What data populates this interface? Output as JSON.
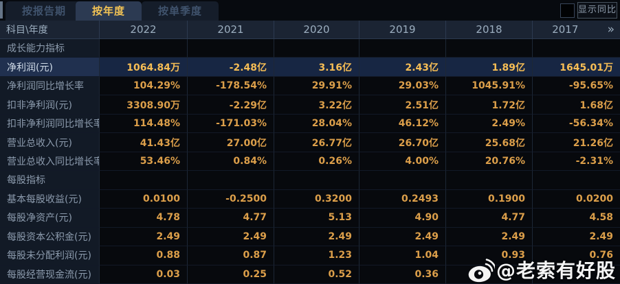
{
  "tabs": [
    {
      "label": "按报告期",
      "active": false
    },
    {
      "label": "按年度",
      "active": true
    },
    {
      "label": "按单季度",
      "active": false
    }
  ],
  "controls": {
    "show_yoy_label": "显示同比",
    "checkbox_checked": false
  },
  "table": {
    "corner_label": "科目\\年度",
    "years": [
      "2022",
      "2021",
      "2020",
      "2019",
      "2018",
      "2017"
    ],
    "more_icon": "»",
    "rows": [
      {
        "type": "section",
        "label": "成长能力指标",
        "values": [
          "",
          "",
          "",
          "",
          "",
          ""
        ]
      },
      {
        "type": "data",
        "label": "净利润(元)",
        "highlight": true,
        "values": [
          "1064.84万",
          "-2.48亿",
          "3.16亿",
          "2.43亿",
          "1.89亿",
          "1645.01万"
        ]
      },
      {
        "type": "data",
        "label": "净利润同比增长率",
        "values": [
          "104.29%",
          "-178.54%",
          "29.91%",
          "29.03%",
          "1045.91%",
          "-95.65%"
        ]
      },
      {
        "type": "data",
        "label": "扣非净利润(元)",
        "values": [
          "3308.90万",
          "-2.29亿",
          "3.22亿",
          "2.51亿",
          "1.72亿",
          "1.68亿"
        ]
      },
      {
        "type": "data",
        "label": "扣非净利润同比增长率",
        "values": [
          "114.48%",
          "-171.03%",
          "28.04%",
          "46.12%",
          "2.49%",
          "-56.34%"
        ]
      },
      {
        "type": "data",
        "label": "营业总收入(元)",
        "values": [
          "41.43亿",
          "27.00亿",
          "26.77亿",
          "26.70亿",
          "25.68亿",
          "21.26亿"
        ]
      },
      {
        "type": "data",
        "label": "营业总收入同比增长率",
        "values": [
          "53.46%",
          "0.84%",
          "0.26%",
          "4.00%",
          "20.76%",
          "-2.31%"
        ]
      },
      {
        "type": "section",
        "label": "每股指标",
        "values": [
          "",
          "",
          "",
          "",
          "",
          ""
        ]
      },
      {
        "type": "data",
        "label": "基本每股收益(元)",
        "values": [
          "0.0100",
          "-0.2500",
          "0.3200",
          "0.2493",
          "0.1900",
          "0.0200"
        ]
      },
      {
        "type": "data",
        "label": "每股净资产(元)",
        "values": [
          "4.78",
          "4.77",
          "5.13",
          "4.90",
          "4.77",
          "4.58"
        ]
      },
      {
        "type": "data",
        "label": "每股资本公积金(元)",
        "values": [
          "2.49",
          "2.49",
          "2.49",
          "2.49",
          "2.49",
          "2.49"
        ]
      },
      {
        "type": "data",
        "label": "每股未分配利润(元)",
        "values": [
          "0.88",
          "0.87",
          "1.23",
          "1.04",
          "0.93",
          "0.76"
        ]
      },
      {
        "type": "data",
        "label": "每股经营现金流(元)",
        "values": [
          "0.03",
          "0.25",
          "0.52",
          "0.36",
          "",
          ""
        ]
      }
    ]
  },
  "watermark": {
    "icon": "weibo-logo",
    "handle": "@老索有好股"
  },
  "colors": {
    "active_tab_text": "#f2c355",
    "value_text": "#dc9f4a",
    "highlight_value_text": "#f6bd55",
    "highlight_row_bg": "#172643",
    "header_bg": "#1b2433",
    "label_col_bg": "#121a26",
    "data_cell_bg": "#07090d"
  }
}
